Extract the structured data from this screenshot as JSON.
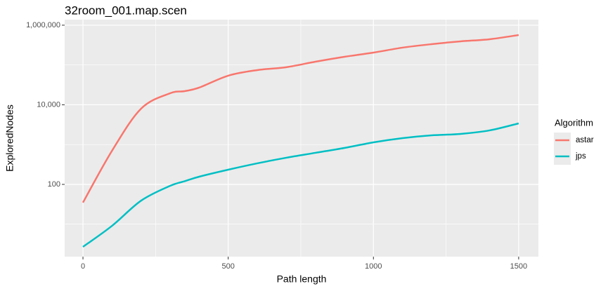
{
  "chart_data": {
    "type": "line",
    "title": "32room_001.map.scen",
    "x_label": "Path length",
    "y_label": "ExploredNodes",
    "x": [
      0,
      100,
      200,
      300,
      350,
      400,
      500,
      600,
      700,
      800,
      900,
      1000,
      1100,
      1200,
      1300,
      1400,
      1500
    ],
    "series": [
      {
        "name": "astar",
        "color": "#f8766d",
        "values": [
          35,
          700,
          8000,
          19500,
          22000,
          27000,
          54000,
          74500,
          88000,
          121000,
          161000,
          205000,
          273000,
          334000,
          393000,
          444000,
          566000
        ]
      },
      {
        "name": "jps",
        "color": "#00bfc4",
        "values": [
          2.7,
          9.1,
          39,
          92,
          120,
          156,
          234,
          338,
          468,
          621,
          824,
          1140,
          1455,
          1710,
          1857,
          2275,
          3410
        ]
      }
    ],
    "xlim": [
      -63,
      1568
    ],
    "ylim": [
      1.53,
      1380000
    ],
    "y_scale": "log",
    "xticks": [
      0,
      500,
      1000,
      1500
    ],
    "x_minor_ticks": [
      250,
      750,
      1250
    ],
    "yticks": [
      {
        "value": 100,
        "label": "100"
      },
      {
        "value": 10000,
        "label": "10,000"
      },
      {
        "value": 1000000,
        "label": "1,000,000"
      }
    ],
    "y_minor_ticks": [
      10,
      1000,
      100000
    ],
    "grid": true,
    "legend_title": "Algorithm",
    "legend_position": "right"
  }
}
